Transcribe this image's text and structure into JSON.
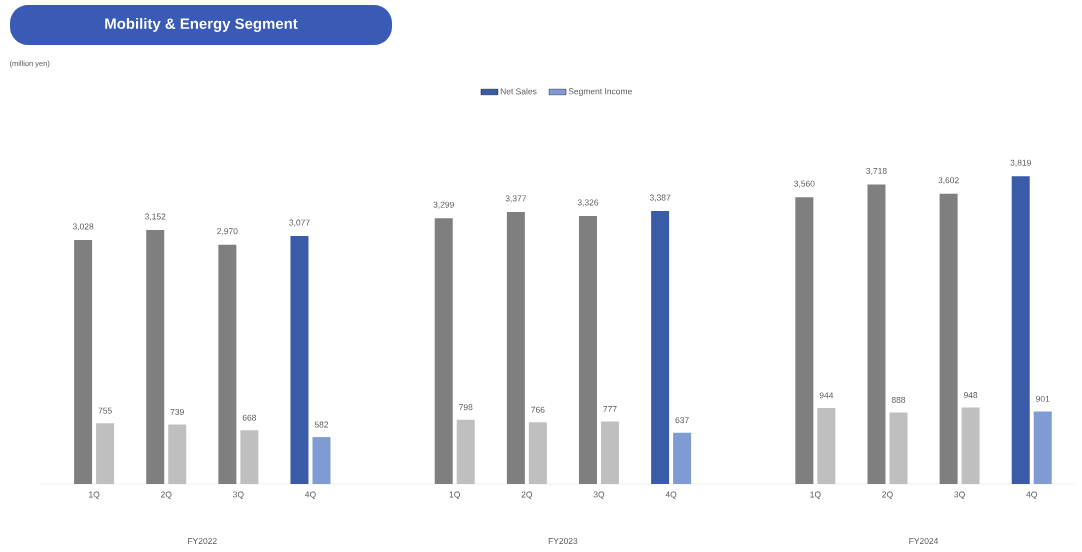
{
  "chart_data": {
    "type": "bar",
    "title": "Mobility & Energy Segment",
    "categories": [
      "1Q",
      "2Q",
      "3Q",
      "4Q",
      "1Q",
      "2Q",
      "3Q",
      "4Q",
      "1Q",
      "2Q",
      "3Q",
      "4Q"
    ],
    "annotations": [
      "(million yen)",
      "FY2022",
      "FY2023",
      "FY2024"
    ],
    "series": [
      {
        "name": "Net Sales",
        "color": "#3a5ba8",
        "colors": [
          "#7f7f7f",
          "#7f7f7f",
          "#7f7f7f",
          "#3a5ba8",
          "#7f7f7f",
          "#7f7f7f",
          "#7f7f7f",
          "#3a5ba8",
          "#7f7f7f",
          "#7f7f7f",
          "#7f7f7f",
          "#3a5ba8"
        ],
        "values": [
          3028,
          3152,
          2970,
          3077,
          3299,
          3377,
          3326,
          3387,
          3560,
          3718,
          3602,
          3819
        ],
        "value_labels": [
          "3,028",
          "3,152",
          "2,970",
          "3,077",
          "3,299",
          "3,377",
          "3,326",
          "3,387",
          "3,560",
          "3,718",
          "3,602",
          "3,819"
        ]
      },
      {
        "name": "Segment Income",
        "color": "#7f9bd4",
        "colors": [
          "#bfbfbf",
          "#bfbfbf",
          "#bfbfbf",
          "#7f9bd4",
          "#bfbfbf",
          "#bfbfbf",
          "#bfbfbf",
          "#7f9bd4",
          "#bfbfbf",
          "#bfbfbf",
          "#bfbfbf",
          "#7f9bd4"
        ],
        "values": [
          755,
          739,
          668,
          582,
          798,
          766,
          777,
          637,
          944,
          888,
          948,
          901
        ],
        "value_labels": [
          "755",
          "739",
          "668",
          "582",
          "798",
          "766",
          "777",
          "637",
          "944",
          "888",
          "948",
          "901"
        ]
      }
    ],
    "legend": "top"
  }
}
